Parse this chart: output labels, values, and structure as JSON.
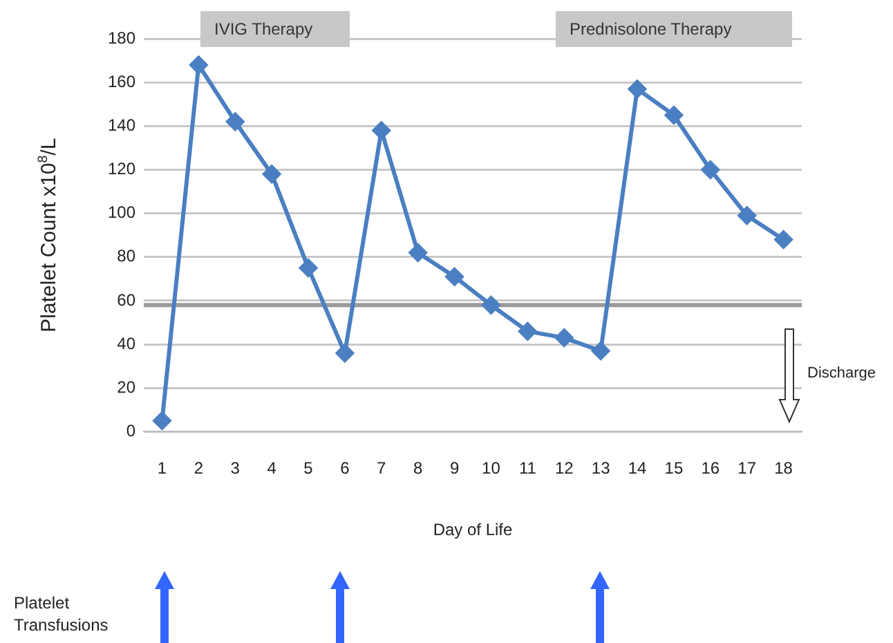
{
  "chart_data": {
    "type": "line",
    "xlabel": "Day of Life",
    "ylabel": "Platelet Count x10$^{8}$/L",
    "x": [
      1,
      2,
      3,
      4,
      5,
      6,
      7,
      8,
      9,
      10,
      11,
      12,
      13,
      14,
      15,
      16,
      17,
      18
    ],
    "series": [
      {
        "color": "#4a7fc1",
        "values": [
          5,
          168,
          142,
          118,
          75,
          36,
          138,
          82,
          71,
          58,
          46,
          43,
          37,
          157,
          145,
          120,
          99,
          88
        ]
      }
    ],
    "xlim": [
      0.5,
      18.5
    ],
    "xticks": [
      1,
      2,
      3,
      4,
      5,
      6,
      7,
      8,
      9,
      10,
      11,
      12,
      13,
      14,
      15,
      16,
      17,
      18
    ],
    "ylim": [
      0,
      180
    ],
    "yticks": [
      0,
      20,
      40,
      60,
      80,
      100,
      120,
      140,
      160,
      180
    ],
    "grid": "y",
    "marker": "diamond",
    "line_style": "solid",
    "legend": false,
    "ref_lines": [
      {
        "axis": "y",
        "value": 58,
        "color": "#9a9a9a"
      }
    ],
    "annotations": [
      "IVIG Therapy",
      "Prednisolone Therapy",
      "Discharge",
      "Platelet Transfusions"
    ]
  }
}
